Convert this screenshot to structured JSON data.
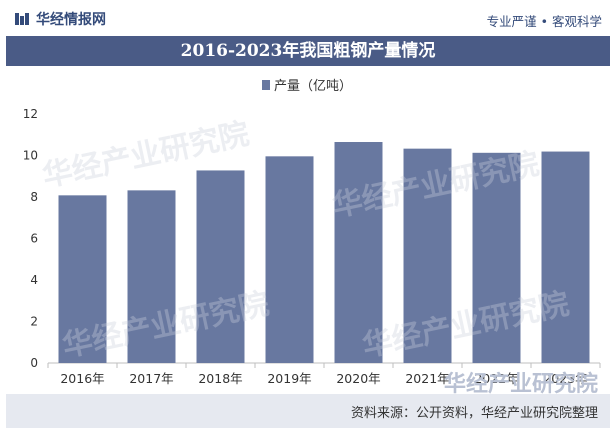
{
  "brand": {
    "name": "华经情报网",
    "slogan": "专业严谨 • 客观科学",
    "color": "#344b7a"
  },
  "header": {
    "title": "2016-2023年我国粗钢产量情况",
    "background": "#4a5b86"
  },
  "footer": {
    "source": "资料来源：公开资料，华经产业研究院整理"
  },
  "watermark": {
    "text": "华经产业研究院"
  },
  "chart_data": {
    "type": "bar",
    "title": "2016-2023年我国粗钢产量情况",
    "categories": [
      "2016年",
      "2017年",
      "2018年",
      "2019年",
      "2020年",
      "2021年",
      "2022年",
      "2023年"
    ],
    "series": [
      {
        "name": "产量（亿吨）",
        "values": [
          8.08,
          8.32,
          9.28,
          9.96,
          10.65,
          10.33,
          10.13,
          10.19
        ],
        "color": "#6878a0"
      }
    ],
    "ylim": [
      0,
      12
    ],
    "yticks": [
      0,
      2,
      4,
      6,
      8,
      10,
      12
    ],
    "grid": false,
    "legend": "top-center"
  }
}
